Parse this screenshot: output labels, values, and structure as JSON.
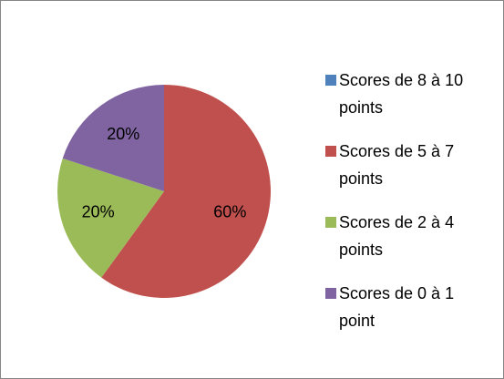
{
  "chart_data": {
    "type": "pie",
    "categories": [
      "Scores de 8 à 10 points",
      "Scores de 5 à 7 points",
      "Scores de 2 à 4 points",
      "Scores de 0 à 1 point"
    ],
    "values": [
      0,
      60,
      20,
      20
    ],
    "value_labels": [
      null,
      "60%",
      "20%",
      "20%"
    ],
    "colors": [
      "#4f81bd",
      "#c0504d",
      "#9bbb59",
      "#8064a2"
    ],
    "legend": "right"
  }
}
